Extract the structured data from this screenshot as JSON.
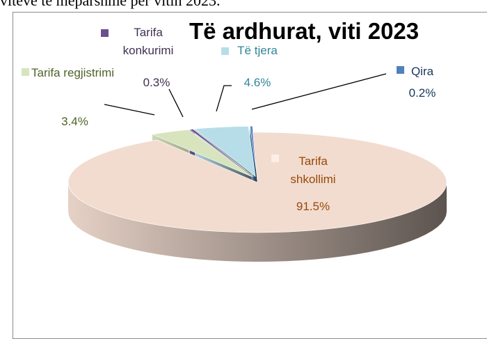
{
  "header_text": "viteve të mëparshme për vitin 2023.",
  "chart_data": {
    "type": "pie",
    "title": "Të ardhurat, viti 2023",
    "categories": [
      "Tarifa regjistrimi",
      "Tarifa konkurimi",
      "Të tjera",
      "Qira",
      "Tarifa shkollimi"
    ],
    "values": [
      3.4,
      0.3,
      4.6,
      0.2,
      91.5
    ],
    "value_labels": [
      "3.4%",
      "0.3%",
      "4.6%",
      "0.2%",
      "91.5%"
    ],
    "colors": [
      "#d7e4bd",
      "#6b4f8f",
      "#b7dde8",
      "#4f81bd",
      "#f2dcd0"
    ],
    "label_colors": [
      "#4f6228",
      "#403152",
      "#31859c",
      "#17375e",
      "#984807"
    ]
  }
}
